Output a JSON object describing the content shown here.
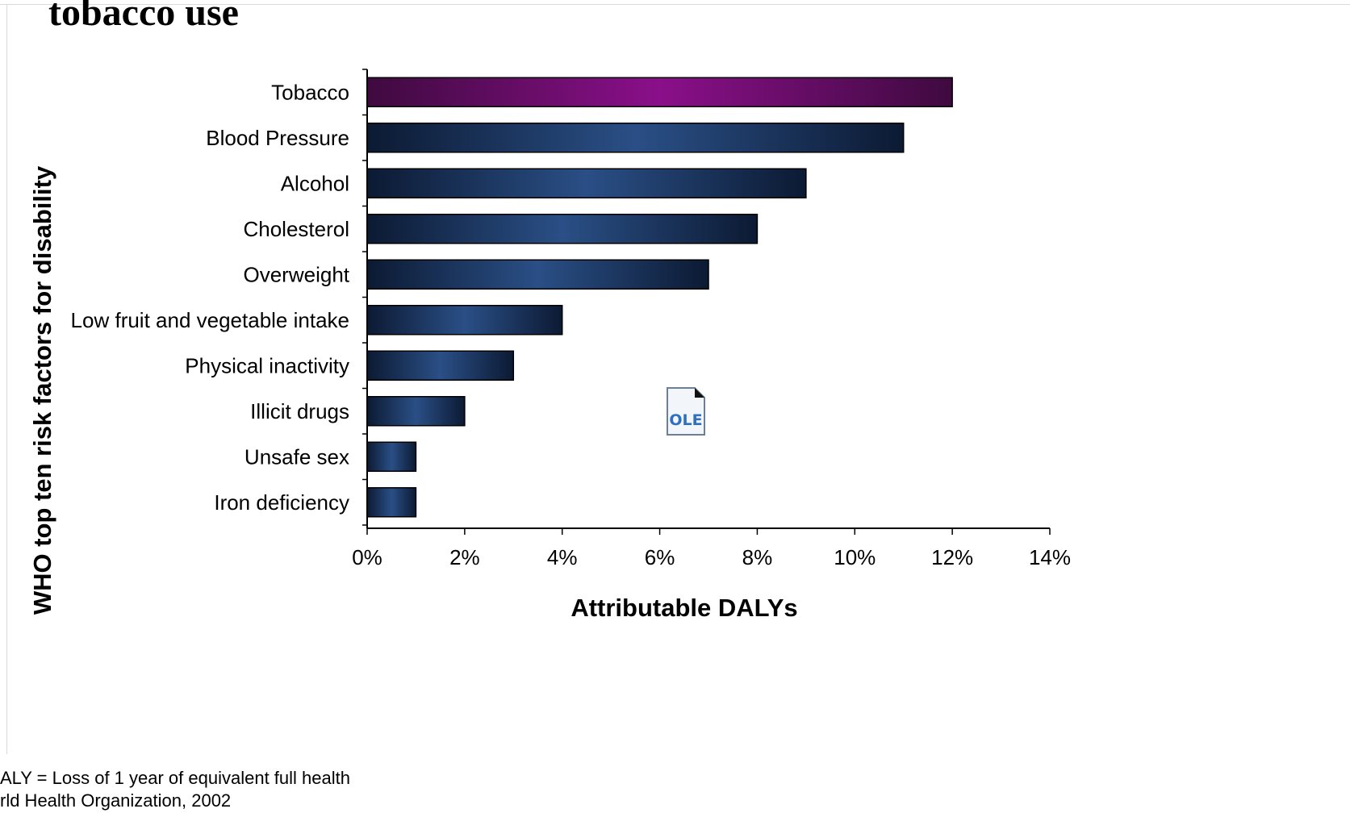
{
  "slide": {
    "title": "tobacco use",
    "footnotes": [
      "ALY = Loss of 1 year of equivalent full health",
      "rld Health Organization, 2002"
    ],
    "ole_icon": {
      "icon": "ole-object-icon",
      "label": "OLE"
    }
  },
  "chart_data": {
    "type": "bar",
    "orientation": "horizontal",
    "categories": [
      "Tobacco",
      "Blood Pressure",
      "Alcohol",
      "Cholesterol",
      "Overweight",
      "Low fruit and vegetable intake",
      "Physical inactivity",
      "Illicit drugs",
      "Unsafe sex",
      "Iron deficiency"
    ],
    "values": [
      12,
      11,
      9,
      8,
      7,
      4,
      3,
      2,
      1,
      1
    ],
    "unit": "%",
    "xlabel": "Attributable DALYs",
    "ylabel": "WHO top ten risk factors for disability",
    "xlim": [
      0,
      14
    ],
    "xticks": [
      "0%",
      "2%",
      "4%",
      "6%",
      "8%",
      "10%",
      "12%",
      "14%"
    ],
    "grid": false,
    "legend": "none",
    "colors": {
      "highlight": "#8a0f8a",
      "highlight_dark": "#3f0a3f",
      "bar": "#2a4f86",
      "bar_dark": "#0c1a33"
    }
  }
}
